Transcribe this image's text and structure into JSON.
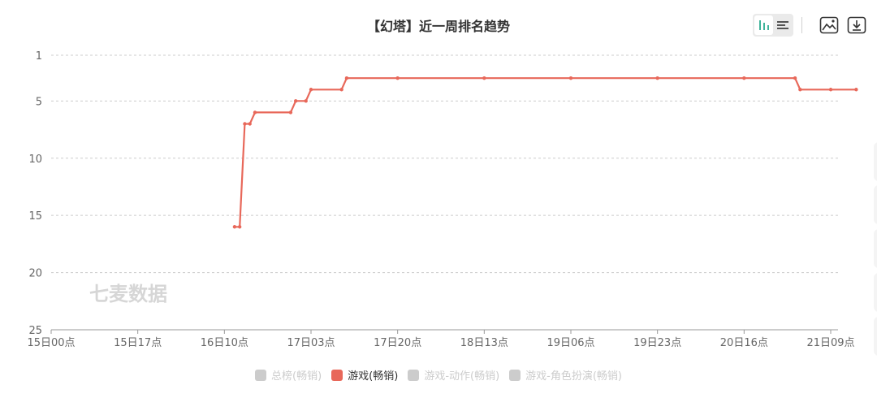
{
  "chart_data": {
    "type": "line",
    "title": "【幻塔】近一周排名趋势",
    "watermark": "七麦数据",
    "y_axis": {
      "reversed": true,
      "min": 1,
      "max": 25,
      "ticks": [
        1,
        5,
        10,
        15,
        20,
        25
      ]
    },
    "x_axis": {
      "tick_labels": [
        "15日00点",
        "15日17点",
        "16日10点",
        "17日03点",
        "17日20点",
        "18日13点",
        "19日06点",
        "19日23点",
        "20日16点",
        "21日09点"
      ]
    },
    "grid": true,
    "legend": {
      "placement": "bottom",
      "items": [
        {
          "label": "总榜(畅销)",
          "active": false
        },
        {
          "label": "游戏(畅销)",
          "active": true
        },
        {
          "label": "游戏-动作(畅销)",
          "active": false
        },
        {
          "label": "游戏-角色扮演(畅销)",
          "active": false
        }
      ]
    },
    "series": [
      {
        "name": "游戏(畅销)",
        "color": "#e8685a",
        "points": [
          [
            "16日12点",
            16
          ],
          [
            "16日13点",
            16
          ],
          [
            "16日14点",
            7
          ],
          [
            "16日15点",
            7
          ],
          [
            "16日16点",
            6
          ],
          [
            "16日23点",
            6
          ],
          [
            "17日00点",
            5
          ],
          [
            "17日02点",
            5
          ],
          [
            "17日03点",
            4
          ],
          [
            "17日09点",
            4
          ],
          [
            "17日10点",
            3
          ],
          [
            "17日20点",
            3
          ],
          [
            "18日13点",
            3
          ],
          [
            "19日06点",
            3
          ],
          [
            "19日23点",
            3
          ],
          [
            "20日16点",
            3
          ],
          [
            "21日02点",
            3
          ],
          [
            "21日03点",
            4
          ],
          [
            "21日09点",
            4
          ],
          [
            "21日14点",
            4
          ]
        ]
      }
    ]
  },
  "toolbar": {
    "icons": [
      "bar-chart-icon",
      "list-icon",
      "image-icon",
      "download-icon"
    ]
  }
}
